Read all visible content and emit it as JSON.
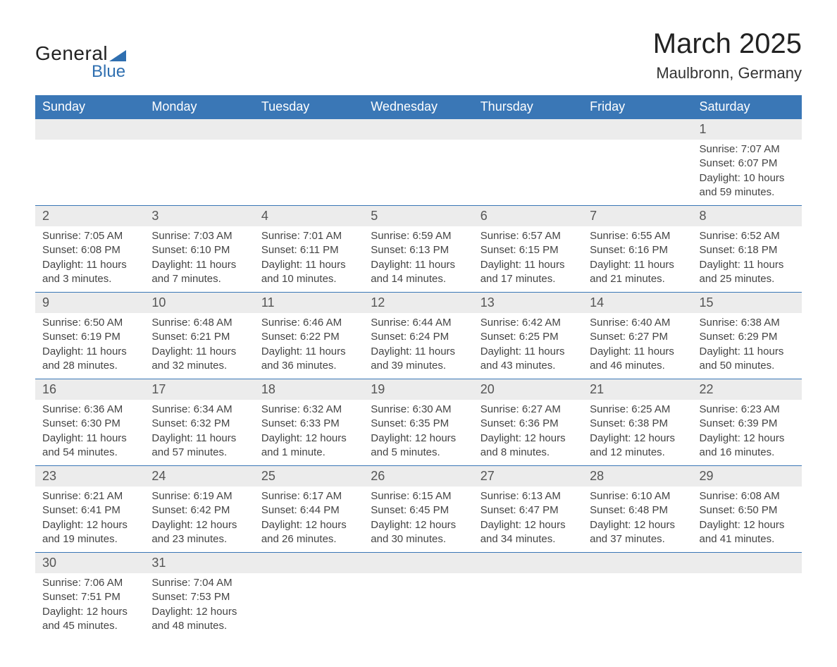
{
  "logo": {
    "line1": "General",
    "line2": "Blue"
  },
  "title": "March 2025",
  "location": "Maulbronn, Germany",
  "header_bg": "#3a77b6",
  "header_fg": "#ffffff",
  "daynum_bg": "#ececec",
  "border_color": "#3a77b6",
  "weekdays": [
    "Sunday",
    "Monday",
    "Tuesday",
    "Wednesday",
    "Thursday",
    "Friday",
    "Saturday"
  ],
  "weeks": [
    [
      null,
      null,
      null,
      null,
      null,
      null,
      {
        "n": "1",
        "sr": "Sunrise: 7:07 AM",
        "ss": "Sunset: 6:07 PM",
        "d1": "Daylight: 10 hours",
        "d2": "and 59 minutes."
      }
    ],
    [
      {
        "n": "2",
        "sr": "Sunrise: 7:05 AM",
        "ss": "Sunset: 6:08 PM",
        "d1": "Daylight: 11 hours",
        "d2": "and 3 minutes."
      },
      {
        "n": "3",
        "sr": "Sunrise: 7:03 AM",
        "ss": "Sunset: 6:10 PM",
        "d1": "Daylight: 11 hours",
        "d2": "and 7 minutes."
      },
      {
        "n": "4",
        "sr": "Sunrise: 7:01 AM",
        "ss": "Sunset: 6:11 PM",
        "d1": "Daylight: 11 hours",
        "d2": "and 10 minutes."
      },
      {
        "n": "5",
        "sr": "Sunrise: 6:59 AM",
        "ss": "Sunset: 6:13 PM",
        "d1": "Daylight: 11 hours",
        "d2": "and 14 minutes."
      },
      {
        "n": "6",
        "sr": "Sunrise: 6:57 AM",
        "ss": "Sunset: 6:15 PM",
        "d1": "Daylight: 11 hours",
        "d2": "and 17 minutes."
      },
      {
        "n": "7",
        "sr": "Sunrise: 6:55 AM",
        "ss": "Sunset: 6:16 PM",
        "d1": "Daylight: 11 hours",
        "d2": "and 21 minutes."
      },
      {
        "n": "8",
        "sr": "Sunrise: 6:52 AM",
        "ss": "Sunset: 6:18 PM",
        "d1": "Daylight: 11 hours",
        "d2": "and 25 minutes."
      }
    ],
    [
      {
        "n": "9",
        "sr": "Sunrise: 6:50 AM",
        "ss": "Sunset: 6:19 PM",
        "d1": "Daylight: 11 hours",
        "d2": "and 28 minutes."
      },
      {
        "n": "10",
        "sr": "Sunrise: 6:48 AM",
        "ss": "Sunset: 6:21 PM",
        "d1": "Daylight: 11 hours",
        "d2": "and 32 minutes."
      },
      {
        "n": "11",
        "sr": "Sunrise: 6:46 AM",
        "ss": "Sunset: 6:22 PM",
        "d1": "Daylight: 11 hours",
        "d2": "and 36 minutes."
      },
      {
        "n": "12",
        "sr": "Sunrise: 6:44 AM",
        "ss": "Sunset: 6:24 PM",
        "d1": "Daylight: 11 hours",
        "d2": "and 39 minutes."
      },
      {
        "n": "13",
        "sr": "Sunrise: 6:42 AM",
        "ss": "Sunset: 6:25 PM",
        "d1": "Daylight: 11 hours",
        "d2": "and 43 minutes."
      },
      {
        "n": "14",
        "sr": "Sunrise: 6:40 AM",
        "ss": "Sunset: 6:27 PM",
        "d1": "Daylight: 11 hours",
        "d2": "and 46 minutes."
      },
      {
        "n": "15",
        "sr": "Sunrise: 6:38 AM",
        "ss": "Sunset: 6:29 PM",
        "d1": "Daylight: 11 hours",
        "d2": "and 50 minutes."
      }
    ],
    [
      {
        "n": "16",
        "sr": "Sunrise: 6:36 AM",
        "ss": "Sunset: 6:30 PM",
        "d1": "Daylight: 11 hours",
        "d2": "and 54 minutes."
      },
      {
        "n": "17",
        "sr": "Sunrise: 6:34 AM",
        "ss": "Sunset: 6:32 PM",
        "d1": "Daylight: 11 hours",
        "d2": "and 57 minutes."
      },
      {
        "n": "18",
        "sr": "Sunrise: 6:32 AM",
        "ss": "Sunset: 6:33 PM",
        "d1": "Daylight: 12 hours",
        "d2": "and 1 minute."
      },
      {
        "n": "19",
        "sr": "Sunrise: 6:30 AM",
        "ss": "Sunset: 6:35 PM",
        "d1": "Daylight: 12 hours",
        "d2": "and 5 minutes."
      },
      {
        "n": "20",
        "sr": "Sunrise: 6:27 AM",
        "ss": "Sunset: 6:36 PM",
        "d1": "Daylight: 12 hours",
        "d2": "and 8 minutes."
      },
      {
        "n": "21",
        "sr": "Sunrise: 6:25 AM",
        "ss": "Sunset: 6:38 PM",
        "d1": "Daylight: 12 hours",
        "d2": "and 12 minutes."
      },
      {
        "n": "22",
        "sr": "Sunrise: 6:23 AM",
        "ss": "Sunset: 6:39 PM",
        "d1": "Daylight: 12 hours",
        "d2": "and 16 minutes."
      }
    ],
    [
      {
        "n": "23",
        "sr": "Sunrise: 6:21 AM",
        "ss": "Sunset: 6:41 PM",
        "d1": "Daylight: 12 hours",
        "d2": "and 19 minutes."
      },
      {
        "n": "24",
        "sr": "Sunrise: 6:19 AM",
        "ss": "Sunset: 6:42 PM",
        "d1": "Daylight: 12 hours",
        "d2": "and 23 minutes."
      },
      {
        "n": "25",
        "sr": "Sunrise: 6:17 AM",
        "ss": "Sunset: 6:44 PM",
        "d1": "Daylight: 12 hours",
        "d2": "and 26 minutes."
      },
      {
        "n": "26",
        "sr": "Sunrise: 6:15 AM",
        "ss": "Sunset: 6:45 PM",
        "d1": "Daylight: 12 hours",
        "d2": "and 30 minutes."
      },
      {
        "n": "27",
        "sr": "Sunrise: 6:13 AM",
        "ss": "Sunset: 6:47 PM",
        "d1": "Daylight: 12 hours",
        "d2": "and 34 minutes."
      },
      {
        "n": "28",
        "sr": "Sunrise: 6:10 AM",
        "ss": "Sunset: 6:48 PM",
        "d1": "Daylight: 12 hours",
        "d2": "and 37 minutes."
      },
      {
        "n": "29",
        "sr": "Sunrise: 6:08 AM",
        "ss": "Sunset: 6:50 PM",
        "d1": "Daylight: 12 hours",
        "d2": "and 41 minutes."
      }
    ],
    [
      {
        "n": "30",
        "sr": "Sunrise: 7:06 AM",
        "ss": "Sunset: 7:51 PM",
        "d1": "Daylight: 12 hours",
        "d2": "and 45 minutes."
      },
      {
        "n": "31",
        "sr": "Sunrise: 7:04 AM",
        "ss": "Sunset: 7:53 PM",
        "d1": "Daylight: 12 hours",
        "d2": "and 48 minutes."
      },
      null,
      null,
      null,
      null,
      null
    ]
  ]
}
